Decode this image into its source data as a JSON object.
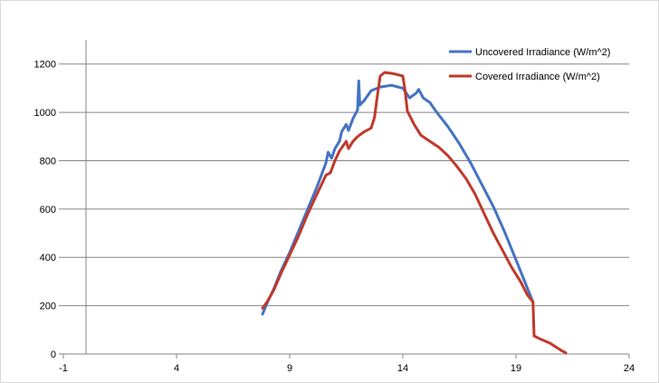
{
  "chart_data": {
    "type": "line",
    "title": "",
    "xlabel": "",
    "ylabel": "",
    "xlim": [
      -1,
      24
    ],
    "ylim": [
      0,
      1300
    ],
    "x_ticks": [
      -1,
      4,
      9,
      14,
      19,
      24
    ],
    "x_tick_labels": [
      "-1",
      "4",
      "9",
      "14",
      "19",
      "24"
    ],
    "y_ticks": [
      0,
      200,
      400,
      600,
      800,
      1000,
      1200
    ],
    "y_tick_labels": [
      "0",
      "200",
      "400",
      "600",
      "800",
      "1000",
      "1200"
    ],
    "grid": "horizontal",
    "legend_position": "top-right",
    "series": [
      {
        "name": "Uncovered Irradiance (W/m^2)",
        "color": "#4472C4",
        "points": [
          [
            7.8,
            165
          ],
          [
            8.0,
            210
          ],
          [
            8.3,
            270
          ],
          [
            8.6,
            340
          ],
          [
            9.0,
            420
          ],
          [
            9.4,
            510
          ],
          [
            9.8,
            600
          ],
          [
            10.2,
            690
          ],
          [
            10.4,
            740
          ],
          [
            10.6,
            790
          ],
          [
            10.7,
            835
          ],
          [
            10.85,
            810
          ],
          [
            11.0,
            850
          ],
          [
            11.2,
            880
          ],
          [
            11.3,
            920
          ],
          [
            11.5,
            950
          ],
          [
            11.6,
            925
          ],
          [
            11.8,
            975
          ],
          [
            12.0,
            1010
          ],
          [
            12.05,
            1130
          ],
          [
            12.1,
            1030
          ],
          [
            12.3,
            1050
          ],
          [
            12.6,
            1090
          ],
          [
            13.0,
            1105
          ],
          [
            13.5,
            1112
          ],
          [
            14.0,
            1100
          ],
          [
            14.3,
            1060
          ],
          [
            14.6,
            1080
          ],
          [
            14.7,
            1095
          ],
          [
            14.9,
            1060
          ],
          [
            15.2,
            1040
          ],
          [
            15.5,
            1000
          ],
          [
            16.0,
            940
          ],
          [
            16.5,
            870
          ],
          [
            17.0,
            790
          ],
          [
            17.5,
            700
          ],
          [
            18.0,
            610
          ],
          [
            18.5,
            505
          ],
          [
            19.0,
            390
          ],
          [
            19.3,
            320
          ],
          [
            19.6,
            250
          ],
          [
            19.75,
            215
          ]
        ]
      },
      {
        "name": "Covered Irradiance (W/m^2)",
        "color": "#C0392B",
        "points": [
          [
            7.8,
            190
          ],
          [
            8.0,
            215
          ],
          [
            8.3,
            265
          ],
          [
            8.6,
            330
          ],
          [
            9.0,
            410
          ],
          [
            9.4,
            490
          ],
          [
            9.8,
            580
          ],
          [
            10.2,
            660
          ],
          [
            10.4,
            700
          ],
          [
            10.6,
            740
          ],
          [
            10.8,
            750
          ],
          [
            11.0,
            800
          ],
          [
            11.2,
            840
          ],
          [
            11.5,
            880
          ],
          [
            11.6,
            850
          ],
          [
            11.8,
            880
          ],
          [
            12.0,
            900
          ],
          [
            12.3,
            920
          ],
          [
            12.6,
            935
          ],
          [
            12.75,
            980
          ],
          [
            12.85,
            1050
          ],
          [
            13.0,
            1150
          ],
          [
            13.2,
            1165
          ],
          [
            13.6,
            1160
          ],
          [
            14.0,
            1150
          ],
          [
            14.1,
            1090
          ],
          [
            14.2,
            1005
          ],
          [
            14.5,
            950
          ],
          [
            14.8,
            905
          ],
          [
            15.2,
            880
          ],
          [
            15.6,
            855
          ],
          [
            16.0,
            820
          ],
          [
            16.4,
            775
          ],
          [
            16.8,
            725
          ],
          [
            17.2,
            660
          ],
          [
            17.6,
            580
          ],
          [
            18.0,
            500
          ],
          [
            18.4,
            430
          ],
          [
            18.8,
            360
          ],
          [
            19.2,
            300
          ],
          [
            19.5,
            245
          ],
          [
            19.75,
            215
          ],
          [
            19.8,
            75
          ],
          [
            20.0,
            65
          ],
          [
            20.5,
            45
          ],
          [
            21.0,
            15
          ],
          [
            21.2,
            5
          ]
        ]
      }
    ]
  }
}
